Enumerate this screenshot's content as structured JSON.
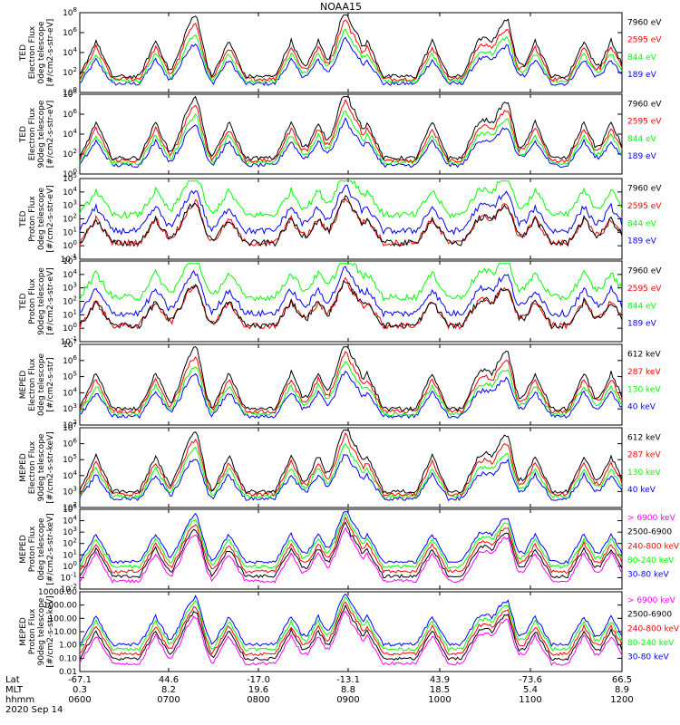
{
  "title": "NOAA15",
  "date_label": "2020 Sep 14",
  "xaxis": {
    "row_labels": [
      "Lat",
      "MLT",
      "hhmm"
    ],
    "ticks": [
      {
        "lat": "-67.1",
        "mlt": "0.3",
        "hhmm": "0600"
      },
      {
        "lat": "44.6",
        "mlt": "8.2",
        "hhmm": "0700"
      },
      {
        "lat": "-17.0",
        "mlt": "19.6",
        "hhmm": "0800"
      },
      {
        "lat": "-13.1",
        "mlt": "8.8",
        "hhmm": "0900"
      },
      {
        "lat": "43.9",
        "mlt": "18.5",
        "hhmm": "1000"
      },
      {
        "lat": "-73.6",
        "mlt": "5.4",
        "hhmm": "1100"
      },
      {
        "lat": "66.5",
        "mlt": "8.9",
        "hhmm": "1200"
      }
    ]
  },
  "colors": {
    "blue": "#0000ff",
    "red": "#ff0000",
    "green": "#00ff00",
    "black": "#000000",
    "magenta": "#ff00ff"
  },
  "chart_data": [
    {
      "type": "line",
      "ylabel": [
        "TED",
        "Electron Flux",
        "0deg telescope",
        "[#/cm2-s-str-eV]"
      ],
      "ylim": [
        1,
        100000000.0
      ],
      "log": true,
      "yticks": [
        "10^0",
        "10^2",
        "10^4",
        "10^6",
        "10^8"
      ],
      "series": [
        {
          "name": "7960 eV",
          "color": "#000000"
        },
        {
          "name": "2595 eV",
          "color": "#ff0000"
        },
        {
          "name": "844 eV",
          "color": "#00ff00"
        },
        {
          "name": "189 eV",
          "color": "#0000ff"
        }
      ]
    },
    {
      "type": "line",
      "ylabel": [
        "TED",
        "Electron Flux",
        "90deg telescope",
        "[#/cm2-s-str-eV]"
      ],
      "ylim": [
        1,
        100000000.0
      ],
      "log": true,
      "yticks": [
        "10^0",
        "10^2",
        "10^4",
        "10^6",
        "10^8"
      ],
      "series": [
        {
          "name": "7960 eV",
          "color": "#000000"
        },
        {
          "name": "2595 eV",
          "color": "#ff0000"
        },
        {
          "name": "844 eV",
          "color": "#00ff00"
        },
        {
          "name": "189 eV",
          "color": "#0000ff"
        }
      ]
    },
    {
      "type": "line",
      "ylabel": [
        "TED",
        "Proton Flux",
        "0deg telescope",
        "[#/cm2-s-str-eV]"
      ],
      "ylim": [
        0.1,
        100000.0
      ],
      "log": true,
      "yticks": [
        "10^-1",
        "10^0",
        "10^1",
        "10^2",
        "10^3",
        "10^4",
        "10^5"
      ],
      "series": [
        {
          "name": "7960 eV",
          "color": "#000000"
        },
        {
          "name": "2595 eV",
          "color": "#ff0000"
        },
        {
          "name": "844 eV",
          "color": "#00ff00"
        },
        {
          "name": "189 eV",
          "color": "#0000ff"
        }
      ]
    },
    {
      "type": "line",
      "ylabel": [
        "TED",
        "Proton Flux",
        "90deg telescope",
        "[#/cm2-s-str-eV]"
      ],
      "ylim": [
        0.1,
        100000.0
      ],
      "log": true,
      "yticks": [
        "10^-1",
        "10^0",
        "10^1",
        "10^2",
        "10^3",
        "10^4",
        "10^5"
      ],
      "series": [
        {
          "name": "7960 eV",
          "color": "#000000"
        },
        {
          "name": "2595 eV",
          "color": "#ff0000"
        },
        {
          "name": "844 eV",
          "color": "#00ff00"
        },
        {
          "name": "189 eV",
          "color": "#0000ff"
        }
      ]
    },
    {
      "type": "line",
      "ylabel": [
        "MEPED",
        "Electron Flux",
        "0deg telescope",
        "[#/cm2-s-str]"
      ],
      "ylim": [
        100,
        10000000.0
      ],
      "log": true,
      "yticks": [
        "10^2",
        "10^3",
        "10^4",
        "10^5",
        "10^6",
        "10^7"
      ],
      "series": [
        {
          "name": "612 keV",
          "color": "#000000"
        },
        {
          "name": "287 keV",
          "color": "#ff0000"
        },
        {
          "name": "130 keV",
          "color": "#00ff00"
        },
        {
          "name": "40 keV",
          "color": "#0000ff"
        }
      ]
    },
    {
      "type": "line",
      "ylabel": [
        "MEPED",
        "Electron Flux",
        "90deg telescope",
        "[#/cm2-s-str-keV]"
      ],
      "ylim": [
        100,
        10000000.0
      ],
      "log": true,
      "yticks": [
        "10^2",
        "10^3",
        "10^4",
        "10^5",
        "10^6",
        "10^7"
      ],
      "series": [
        {
          "name": "612 keV",
          "color": "#000000"
        },
        {
          "name": "287 keV",
          "color": "#ff0000"
        },
        {
          "name": "130 keV",
          "color": "#00ff00"
        },
        {
          "name": "40 keV",
          "color": "#0000ff"
        }
      ]
    },
    {
      "type": "line",
      "ylabel": [
        "MEPED",
        "Proton Flux",
        "0deg telescope",
        "[#/cm2-s-str-keV]"
      ],
      "ylim": [
        0.01,
        100000.0
      ],
      "log": true,
      "yticks": [
        "10^-2",
        "10^-1",
        "10^0",
        "10^1",
        "10^2",
        "10^3",
        "10^4",
        "10^5"
      ],
      "series": [
        {
          "name": "> 6900 keV",
          "color": "#ff00ff"
        },
        {
          "name": "2500-6900",
          "color": "#000000"
        },
        {
          "name": "240-800 keV",
          "color": "#ff0000"
        },
        {
          "name": "80-240 keV",
          "color": "#00ff00"
        },
        {
          "name": "30-80 keV",
          "color": "#0000ff"
        }
      ]
    },
    {
      "type": "line",
      "ylabel": [
        "MEPED",
        "Proton Flux",
        "90deg telescope",
        "[#/cm2-s-str-keV]"
      ],
      "ylim": [
        0.01,
        10000
      ],
      "log": true,
      "yticks": [
        "0.01",
        "0.10",
        "1.00",
        "10.00",
        "100.00",
        "1000.00",
        "10000.00"
      ],
      "series": [
        {
          "name": "> 6900 keV",
          "color": "#ff00ff"
        },
        {
          "name": "2500-6900",
          "color": "#000000"
        },
        {
          "name": "240-800 keV",
          "color": "#ff0000"
        },
        {
          "name": "80-240 keV",
          "color": "#00ff00"
        },
        {
          "name": "30-80 keV",
          "color": "#0000ff"
        }
      ]
    }
  ]
}
